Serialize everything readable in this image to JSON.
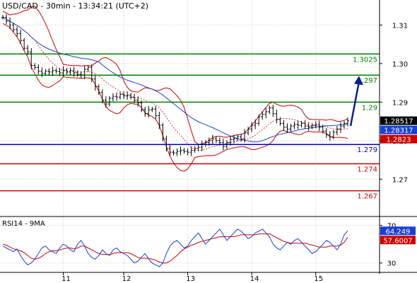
{
  "chart_data": {
    "type": "candlestick",
    "title": "USD/CAD - 30min - 13:34:21 (UTC+2)",
    "price_panel": {
      "ylim": [
        1.2605,
        1.3165
      ],
      "y_ticks": [
        1.31,
        1.3,
        1.29,
        1.28,
        1.27
      ],
      "y_tick_labels": [
        "1.31",
        "1.30",
        "1.29",
        "1.28",
        "1.27"
      ],
      "levels": [
        {
          "name": "resistance",
          "value": 1.3025,
          "label": "1.3025",
          "color": "#008000"
        },
        {
          "name": "resistance",
          "value": 1.297,
          "label": "1.297",
          "color": "#008000"
        },
        {
          "name": "resistance",
          "value": 1.29,
          "label": "1.29",
          "color": "#008000"
        },
        {
          "name": "pivot",
          "value": 1.279,
          "label": "1.279",
          "color": "#0000cc"
        },
        {
          "name": "support",
          "value": 1.274,
          "label": "1.274",
          "color": "#cc0000"
        },
        {
          "name": "support",
          "value": 1.267,
          "label": "1.267",
          "color": "#cc0000"
        }
      ],
      "price_tags": [
        {
          "value": 1.28517,
          "label": "1.28517",
          "color": "#000000"
        },
        {
          "value": 1.28317,
          "label": "1.28317",
          "color": "#1a3fd6"
        },
        {
          "value": 1.2823,
          "label": "1.2823",
          "color": "#cc0000"
        }
      ],
      "close_x": [
        0,
        5,
        10,
        15,
        20,
        25,
        30,
        35,
        40,
        45,
        50,
        55,
        60,
        65,
        70,
        75,
        80,
        85,
        90,
        95,
        100,
        105,
        110,
        115,
        120,
        125,
        130,
        135,
        140,
        145,
        150,
        155,
        160,
        165,
        170,
        175,
        180,
        185,
        190,
        195,
        200,
        205,
        210,
        215,
        220,
        225,
        230,
        235,
        240,
        245,
        250,
        255,
        260,
        265,
        270,
        275,
        280,
        285,
        290,
        295,
        300,
        305,
        310,
        315,
        320,
        325,
        330,
        335,
        340,
        345,
        350,
        355,
        360,
        365,
        370,
        375,
        380,
        385,
        390,
        395,
        400,
        405,
        410,
        415,
        420,
        425,
        430,
        435,
        440,
        445,
        450,
        455,
        460,
        465,
        470,
        475,
        480,
        485
      ],
      "close": [
        1.312,
        1.311,
        1.31,
        1.3088,
        1.3078,
        1.306,
        1.304,
        1.303,
        1.2995,
        1.299,
        1.298,
        1.2975,
        1.298,
        1.2978,
        1.2982,
        1.298,
        1.2976,
        1.2983,
        1.2978,
        1.2982,
        1.2976,
        1.2972,
        1.297,
        1.2985,
        1.299,
        1.296,
        1.294,
        1.2925,
        1.2905,
        1.2895,
        1.291,
        1.2915,
        1.2913,
        1.292,
        1.2916,
        1.2918,
        1.2913,
        1.2905,
        1.2898,
        1.288,
        1.287,
        1.288,
        1.2882,
        1.2865,
        1.284,
        1.2805,
        1.278,
        1.277,
        1.2768,
        1.2772,
        1.2775,
        1.2772,
        1.277,
        1.2775,
        1.278,
        1.2783,
        1.279,
        1.2795,
        1.28,
        1.2805,
        1.28,
        1.2795,
        1.2785,
        1.2795,
        1.2803,
        1.2805,
        1.281,
        1.2805,
        1.282,
        1.283,
        1.284,
        1.2845,
        1.2862,
        1.2868,
        1.2875,
        1.2885,
        1.287,
        1.2855,
        1.2845,
        1.2835,
        1.283,
        1.2838,
        1.2842,
        1.284,
        1.2845,
        1.2838,
        1.2836,
        1.284,
        1.2842,
        1.2835,
        1.2825,
        1.2815,
        1.281,
        1.2822,
        1.283,
        1.2838,
        1.2845,
        1.28517
      ],
      "forecast_arrow": {
        "from_value": 1.2838,
        "to_value": 1.2968
      }
    },
    "rsi_panel": {
      "title": "RSI14 - 9MA",
      "ylim": [
        20,
        78
      ],
      "y_ticks": [
        70,
        30
      ],
      "y_tick_labels": [
        "70",
        "30"
      ],
      "tags": [
        {
          "value": 64.249,
          "label": "64.249",
          "color": "#1a3fd6"
        },
        {
          "value": 57.6007,
          "label": "57.6007",
          "color": "#cc0000"
        }
      ],
      "rsi": [
        48,
        46,
        44,
        42,
        45,
        38,
        32,
        28,
        30,
        34,
        40,
        46,
        48,
        44,
        42,
        40,
        46,
        50,
        48,
        44,
        42,
        50,
        54,
        48,
        40,
        36,
        34,
        38,
        44,
        40,
        38,
        44,
        46,
        42,
        40,
        38,
        34,
        30,
        32,
        36,
        40,
        34,
        30,
        28,
        26,
        30,
        40,
        48,
        52,
        54,
        50,
        46,
        48,
        54,
        58,
        62,
        56,
        50,
        54,
        58,
        62,
        66,
        60,
        54,
        58,
        62,
        66,
        64,
        60,
        56,
        58,
        62,
        64,
        66,
        62,
        58,
        50,
        46,
        44,
        48,
        52,
        50,
        54,
        56,
        52,
        48,
        44,
        40,
        42,
        46,
        50,
        54,
        52,
        48,
        44,
        50,
        60,
        64.249
      ],
      "ma": [
        50,
        49,
        47,
        45,
        44,
        43,
        41,
        38,
        35,
        34,
        35,
        37,
        40,
        42,
        43,
        43,
        44,
        45,
        46,
        46,
        45,
        46,
        48,
        48,
        46,
        44,
        42,
        40,
        39,
        39,
        39,
        40,
        41,
        41,
        41,
        41,
        40,
        38,
        36,
        35,
        35,
        35,
        34,
        33,
        31,
        30,
        30,
        32,
        35,
        38,
        42,
        45,
        47,
        49,
        50,
        52,
        53,
        54,
        55,
        56,
        57,
        58,
        58,
        58,
        58,
        58,
        59,
        60,
        60,
        60,
        60,
        60,
        61,
        61,
        61,
        61,
        59,
        57,
        55,
        53,
        52,
        51,
        51,
        51,
        51,
        51,
        50,
        49,
        48,
        47,
        47,
        47,
        48,
        48,
        48,
        49,
        52,
        57.6007
      ]
    },
    "x_axis": {
      "labels": [
        "11",
        "12",
        "13",
        "14",
        "15"
      ],
      "label_bar_index": [
        17,
        34,
        52,
        70,
        88
      ]
    }
  }
}
